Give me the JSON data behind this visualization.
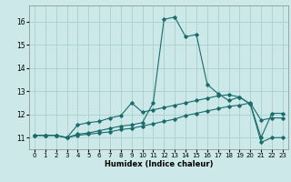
{
  "xlabel": "Humidex (Indice chaleur)",
  "xlim": [
    -0.5,
    23.5
  ],
  "ylim": [
    10.5,
    16.7
  ],
  "xticks": [
    0,
    1,
    2,
    3,
    4,
    5,
    6,
    7,
    8,
    9,
    10,
    11,
    12,
    13,
    14,
    15,
    16,
    17,
    18,
    19,
    20,
    21,
    22,
    23
  ],
  "yticks": [
    11,
    12,
    13,
    14,
    15,
    16
  ],
  "bg_color": "#cce8e8",
  "line_color": "#1a6b6b",
  "grid_color": "#aacfcf",
  "line1_x": [
    0,
    1,
    2,
    3,
    4,
    5,
    6,
    7,
    8,
    9,
    10,
    11,
    12,
    13,
    14,
    15,
    16,
    17,
    18,
    19,
    20,
    21,
    22,
    23
  ],
  "line1_y": [
    11.1,
    11.1,
    11.1,
    11.0,
    11.55,
    11.65,
    11.7,
    11.85,
    11.95,
    12.5,
    12.1,
    12.2,
    12.3,
    12.4,
    12.5,
    12.6,
    12.7,
    12.8,
    12.85,
    12.75,
    12.45,
    11.0,
    12.05,
    12.05
  ],
  "line2_x": [
    0,
    1,
    2,
    3,
    4,
    5,
    6,
    7,
    8,
    9,
    10,
    11,
    12,
    13,
    14,
    15,
    16,
    17,
    18,
    19,
    20,
    21,
    22,
    23
  ],
  "line2_y": [
    11.1,
    11.1,
    11.1,
    11.0,
    11.15,
    11.2,
    11.3,
    11.4,
    11.5,
    11.55,
    11.65,
    12.5,
    16.1,
    16.2,
    15.35,
    15.45,
    13.3,
    12.9,
    12.6,
    12.75,
    12.45,
    10.8,
    11.0,
    11.0
  ],
  "line3_x": [
    0,
    1,
    2,
    3,
    4,
    5,
    6,
    7,
    8,
    9,
    10,
    11,
    12,
    13,
    14,
    15,
    16,
    17,
    18,
    19,
    20,
    21,
    22,
    23
  ],
  "line3_y": [
    11.1,
    11.1,
    11.1,
    11.0,
    11.1,
    11.15,
    11.2,
    11.25,
    11.35,
    11.4,
    11.5,
    11.6,
    11.7,
    11.8,
    11.95,
    12.05,
    12.15,
    12.25,
    12.35,
    12.4,
    12.5,
    11.75,
    11.85,
    11.85
  ]
}
